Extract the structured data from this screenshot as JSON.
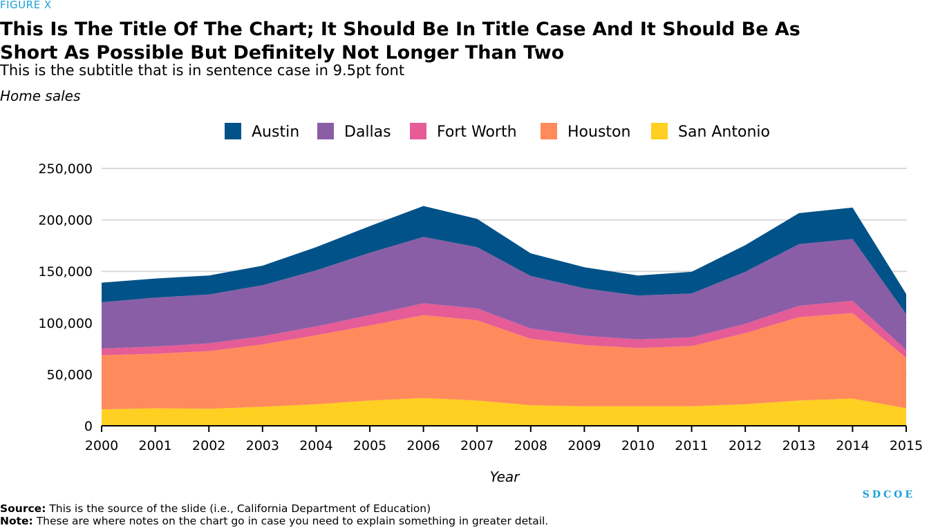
{
  "figure_label": "FIGURE X",
  "brand": "SDCOE",
  "footer": {
    "source_label": "Source:",
    "source_text": "This is the source of the slide (i.e., California Department of Education)",
    "note_label": "Note:",
    "note_text": "These are where notes on the chart go in case you need to explain something in greater detail."
  },
  "colors": {
    "Austin": "#005288",
    "Dallas": "#8a5ea6",
    "Fort Worth": "#e55c96",
    "Houston": "#ff8a5c",
    "San Antonio": "#ffcf22",
    "gridline": "#d9d9d9",
    "axis": "#000000",
    "accent": "#1ba0d8"
  },
  "chart_data": {
    "type": "area",
    "stacked": true,
    "title": "This Is The Title Of The Chart; It Should Be In Title Case And It Should Be As Short As Possible But Definitely Not Longer Than Two",
    "subtitle": "This is the subtitle that is in sentence case in 9.5pt font",
    "ylabel": "Home sales",
    "xlabel": "Year",
    "x": [
      2000,
      2001,
      2002,
      2003,
      2004,
      2005,
      2006,
      2007,
      2008,
      2009,
      2010,
      2011,
      2012,
      2013,
      2014,
      2015
    ],
    "ylim": [
      0,
      250000
    ],
    "yticks": [
      0,
      50000,
      100000,
      150000,
      200000,
      250000
    ],
    "ytick_labels": [
      "0",
      "50,000",
      "100,000",
      "150,000",
      "200,000",
      "250,000"
    ],
    "grid": true,
    "legend_position": "top-center",
    "series": [
      {
        "name": "San Antonio",
        "values": [
          16000,
          17000,
          16500,
          18500,
          21000,
          24500,
          27000,
          24500,
          20000,
          19000,
          19000,
          19000,
          21000,
          24500,
          26500,
          17000
        ]
      },
      {
        "name": "Houston",
        "values": [
          52500,
          53000,
          56000,
          60500,
          67000,
          73000,
          80500,
          78000,
          64500,
          59500,
          56500,
          58500,
          69000,
          81000,
          83000,
          49000
        ]
      },
      {
        "name": "Fort Worth",
        "values": [
          6500,
          7000,
          7500,
          8000,
          8500,
          10000,
          11500,
          11500,
          10000,
          9000,
          8500,
          8500,
          9000,
          11000,
          12000,
          7500
        ]
      },
      {
        "name": "Dallas",
        "values": [
          45000,
          47500,
          47500,
          49500,
          54500,
          60500,
          64500,
          59500,
          51000,
          46000,
          42500,
          42500,
          50500,
          60000,
          60000,
          35000
        ]
      },
      {
        "name": "Austin",
        "values": [
          19000,
          18500,
          18500,
          19000,
          22500,
          26000,
          30000,
          27500,
          22000,
          20500,
          19500,
          21000,
          26000,
          30000,
          30500,
          19500
        ]
      }
    ],
    "legend_order": [
      "Austin",
      "Dallas",
      "Fort Worth",
      "Houston",
      "San Antonio"
    ]
  }
}
